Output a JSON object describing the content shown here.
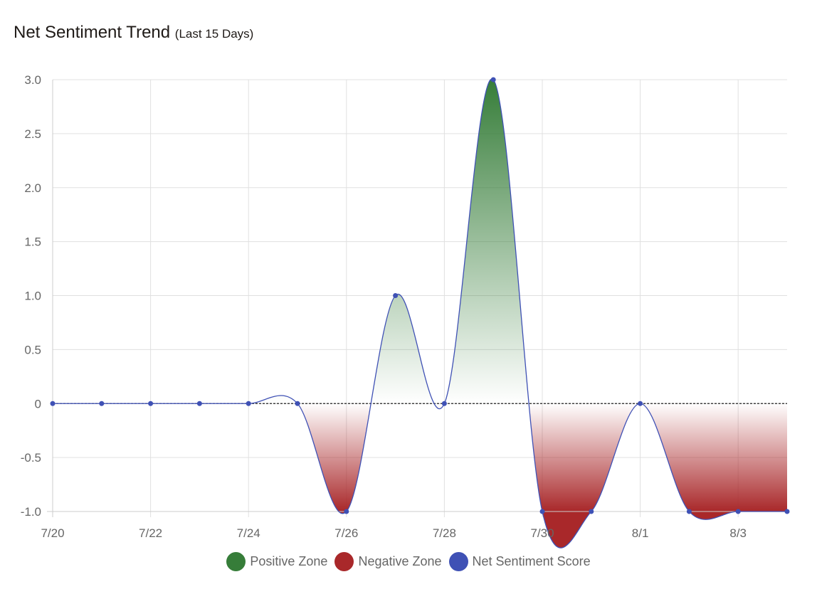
{
  "header": {
    "title": "Net Sentiment Trend",
    "subtitle": "(Last 15 Days)"
  },
  "colors": {
    "positive": "#367d39",
    "negative": "#a9282a",
    "line": "#3f51b5",
    "grid": "#e0e0e0"
  },
  "chart_data": {
    "type": "line",
    "title": "Net Sentiment Trend",
    "subtitle": "(Last 15 Days)",
    "xlabel": "",
    "ylabel": "",
    "x": [
      "7/20",
      "7/21",
      "7/22",
      "7/23",
      "7/24",
      "7/25",
      "7/26",
      "7/27",
      "7/28",
      "7/29",
      "7/30",
      "7/31",
      "8/1",
      "8/2",
      "8/3",
      "8/4"
    ],
    "x_tick_labels": [
      "7/20",
      "7/22",
      "7/24",
      "7/26",
      "7/28",
      "7/30",
      "8/1",
      "8/3"
    ],
    "y_ticks": [
      3.0,
      2.5,
      2.0,
      1.5,
      1.0,
      0.5,
      0,
      -0.5,
      -1.0
    ],
    "y_tick_labels": [
      "3.0",
      "2.5",
      "2.0",
      "1.5",
      "1.0",
      "0.5",
      "0",
      "-0.5",
      "-1.0"
    ],
    "ylim": [
      -1,
      3
    ],
    "grid": true,
    "legend_position": "bottom",
    "series": [
      {
        "name": "Net Sentiment Score",
        "values": [
          0,
          0,
          0,
          0,
          0,
          0,
          -1,
          1,
          0,
          3,
          -1,
          -1,
          0,
          -1,
          -1,
          -1
        ]
      }
    ],
    "legend": [
      {
        "label": "Positive Zone",
        "color": "#367d39"
      },
      {
        "label": "Negative Zone",
        "color": "#a9282a"
      },
      {
        "label": "Net Sentiment Score",
        "color": "#3f51b5"
      }
    ]
  }
}
